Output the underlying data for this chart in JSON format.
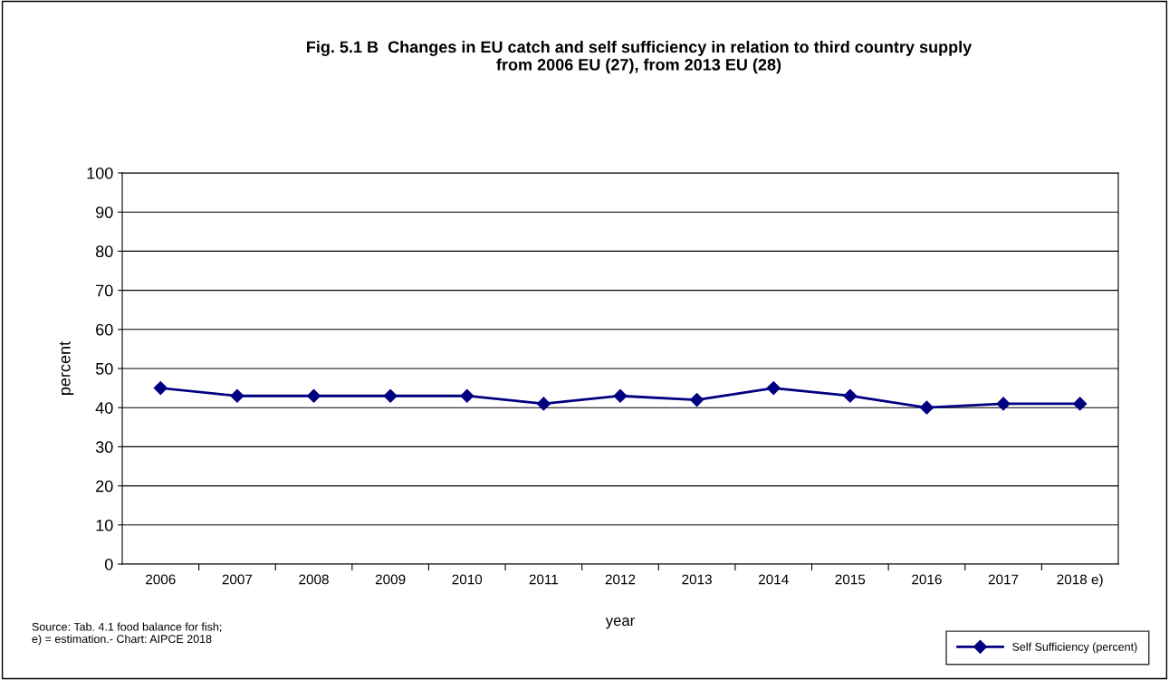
{
  "chart_data": {
    "type": "line",
    "title": "Fig. 5.1 B  Changes in EU catch and self sufficiency in relation to third country supply\nfrom 2006 EU (27), from 2013 EU (28)",
    "xlabel": "year",
    "ylabel": "percent",
    "categories": [
      "2006",
      "2007",
      "2008",
      "2009",
      "2010",
      "2011",
      "2012",
      "2013",
      "2014",
      "2015",
      "2016",
      "2017",
      "2018 e)"
    ],
    "series": [
      {
        "name": "Self Sufficiency (percent)",
        "color": "#000080",
        "values": [
          45,
          43,
          43,
          43,
          43,
          41,
          43,
          42,
          45,
          43,
          40,
          41,
          41
        ]
      }
    ],
    "ylim": [
      0,
      100
    ],
    "yticks": [
      0,
      10,
      20,
      30,
      40,
      50,
      60,
      70,
      80,
      90,
      100
    ],
    "grid": "y",
    "legend": "bottom right",
    "marker": "diamond",
    "line_style": "solid",
    "annotations": [
      "Source: Tab. 4.1 food balance for fish;\ne) = estimation.- Chart: AIPCE 2018"
    ]
  }
}
